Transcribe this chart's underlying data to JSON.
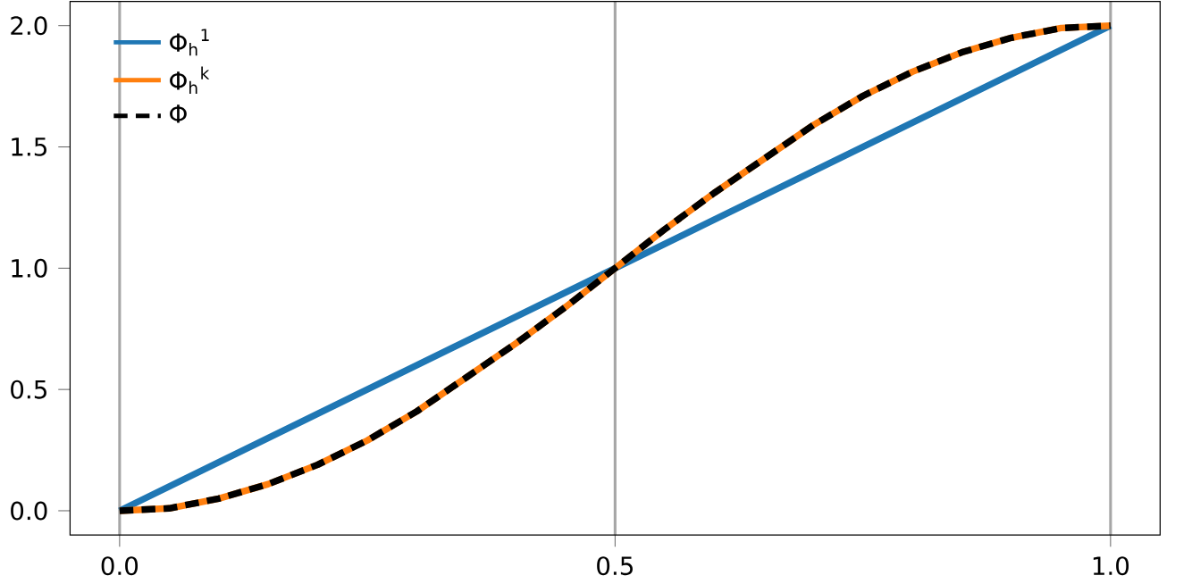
{
  "chart_data": {
    "type": "line",
    "xlim": [
      -0.05,
      1.05
    ],
    "ylim": [
      -0.1,
      2.1
    ],
    "xticks": [
      {
        "value": 0,
        "label": "0.0"
      },
      0.5,
      {
        "value": 1,
        "label": "1.0"
      }
    ],
    "yticks": [
      {
        "value": 0,
        "label": "0.0"
      },
      0.5,
      {
        "value": 1,
        "label": "1.0"
      },
      1.5,
      {
        "value": 2,
        "label": "2.0"
      }
    ],
    "grid": "x",
    "legend": "top left",
    "series": [
      {
        "name": "Φ$_{h}$$^{1}$",
        "color": "#1f77b4",
        "line_style": "solid",
        "x": [
          0,
          0.5,
          1
        ],
        "values": [
          0,
          1,
          2
        ]
      },
      {
        "name": "Φ$_{h}$$^{k}$",
        "color": "#ff7f0e",
        "line_style": "solid",
        "x": [
          0,
          0.05,
          0.1,
          0.15,
          0.2,
          0.25,
          0.3,
          0.35,
          0.4,
          0.45,
          0.5,
          0.55,
          0.6,
          0.65,
          0.7,
          0.75,
          0.8,
          0.85,
          0.9,
          0.95,
          1
        ],
        "values": [
          0,
          0.01,
          0.05,
          0.11,
          0.19,
          0.29,
          0.41,
          0.55,
          0.69,
          0.84,
          1,
          1.16,
          1.31,
          1.45,
          1.59,
          1.71,
          1.81,
          1.89,
          1.95,
          1.99,
          2
        ]
      },
      {
        "name": "Φ",
        "color": "#000000",
        "line_style": "dashed",
        "x": [
          0,
          0.05,
          0.1,
          0.15,
          0.2,
          0.25,
          0.3,
          0.35,
          0.4,
          0.45,
          0.5,
          0.55,
          0.6,
          0.65,
          0.7,
          0.75,
          0.8,
          0.85,
          0.9,
          0.95,
          1
        ],
        "values": [
          0,
          0.01,
          0.05,
          0.11,
          0.19,
          0.29,
          0.41,
          0.55,
          0.69,
          0.84,
          1,
          1.16,
          1.31,
          1.45,
          1.59,
          1.71,
          1.81,
          1.89,
          1.95,
          1.99,
          2
        ]
      }
    ]
  }
}
